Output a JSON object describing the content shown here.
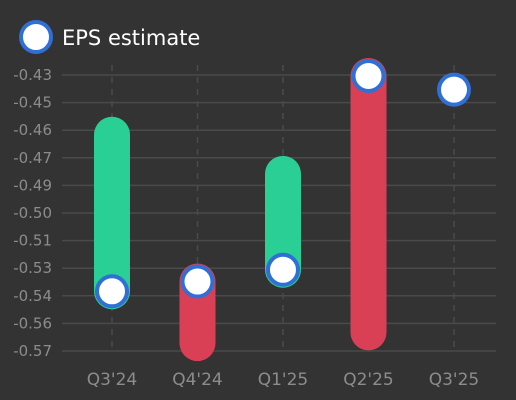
{
  "chart_data": {
    "type": "range-bar",
    "legend": {
      "label": "EPS estimate",
      "position": "top-left"
    },
    "categories": [
      "Q3'24",
      "Q4'24",
      "Q1'25",
      "Q2'25",
      "Q3'25"
    ],
    "y_ticks": [
      "-0.43",
      "-0.45",
      "-0.46",
      "-0.47",
      "-0.49",
      "-0.50",
      "-0.51",
      "-0.53",
      "-0.54",
      "-0.56",
      "-0.57"
    ],
    "ylim": [
      -0.573,
      -0.432
    ],
    "grid": {
      "horizontal": true,
      "vertical_dashed": true
    },
    "series": [
      {
        "name": "EPS estimate",
        "values": [
          -0.5425,
          -0.5375,
          -0.5315,
          -0.4325,
          -0.4395
        ]
      }
    ],
    "bars": [
      {
        "category": "Q3'24",
        "from": -0.4625,
        "to": -0.5425,
        "status": "beat"
      },
      {
        "category": "Q4'24",
        "from": -0.5375,
        "to": -0.569,
        "status": "miss"
      },
      {
        "category": "Q1'25",
        "from": -0.4825,
        "to": -0.5315,
        "status": "beat"
      },
      {
        "category": "Q2'25",
        "from": -0.4325,
        "to": -0.5635,
        "status": "miss"
      }
    ],
    "colors": {
      "background": "#333333",
      "beat": "#2acf96",
      "miss": "#d94055",
      "marker_fill": "#ffffff",
      "marker_stroke": "#2f6fd6",
      "grid": "#4a4a4a",
      "tick_text": "#8c8c8c",
      "legend_text": "#ffffff"
    }
  }
}
